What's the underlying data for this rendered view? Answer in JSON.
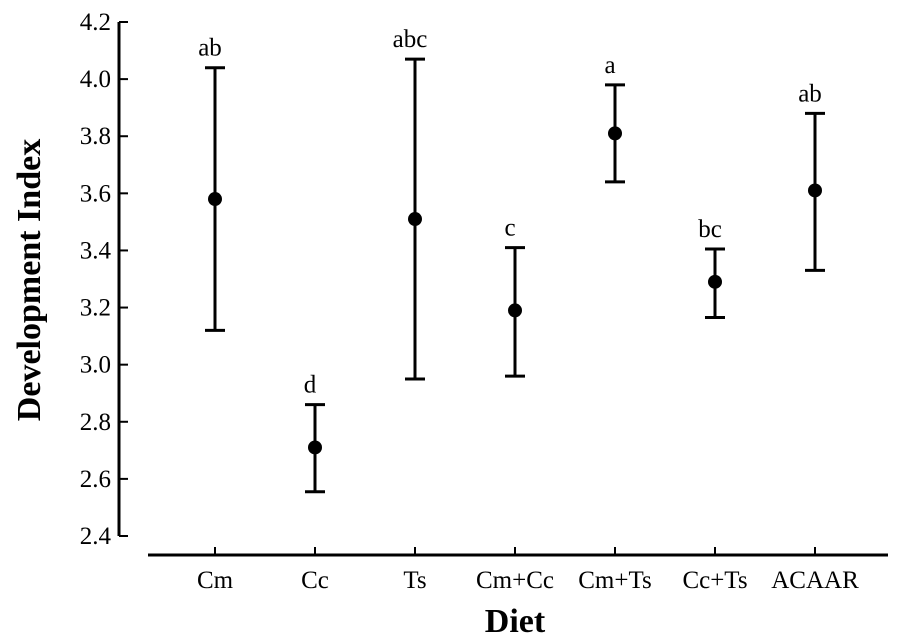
{
  "chart_data": {
    "type": "scatter",
    "subtype": "error-bar",
    "xlabel": "Diet",
    "ylabel": "Development Index",
    "categories": [
      "Cm",
      "Cc",
      "Ts",
      "Cm+Cc",
      "Cm+Ts",
      "Cc+Ts",
      "ACAAR"
    ],
    "means": [
      3.58,
      2.71,
      3.51,
      3.19,
      3.81,
      3.29,
      3.61
    ],
    "lower": [
      3.12,
      2.555,
      2.95,
      2.96,
      3.64,
      3.165,
      3.33
    ],
    "upper": [
      4.04,
      2.86,
      4.07,
      3.41,
      3.98,
      3.405,
      3.88
    ],
    "significance_labels": [
      "ab",
      "d",
      "abc",
      "c",
      "a",
      "bc",
      "ab"
    ],
    "ylim": [
      2.4,
      4.2
    ],
    "yticks": [
      "2.4",
      "2.6",
      "2.8",
      "3.0",
      "3.2",
      "3.4",
      "3.6",
      "3.8",
      "4.0",
      "4.2"
    ],
    "grid": false,
    "colors": {
      "marker": "#000000",
      "axis": "#000000"
    }
  }
}
